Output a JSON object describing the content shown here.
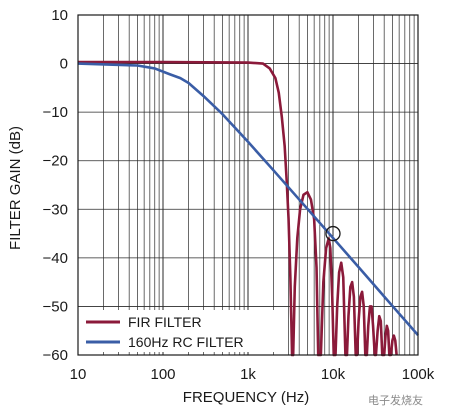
{
  "chart_data": {
    "type": "line",
    "xlabel": "FREQUENCY (Hz)",
    "ylabel": "FILTER GAIN (dB)",
    "x_scale": "log",
    "xlim": [
      10,
      100000
    ],
    "ylim": [
      -60,
      10
    ],
    "x_ticks": [
      {
        "value": 10,
        "label": "10"
      },
      {
        "value": 100,
        "label": "100"
      },
      {
        "value": 1000,
        "label": "1k"
      },
      {
        "value": 10000,
        "label": "10k"
      },
      {
        "value": 100000,
        "label": "100k"
      }
    ],
    "y_ticks": [
      10,
      0,
      -10,
      -20,
      -30,
      -40,
      -50,
      -60
    ],
    "grid": true,
    "legend_position": "bottom-left",
    "annotation": {
      "type": "circle",
      "x": 10000,
      "y": -35
    },
    "series": [
      {
        "name": "FIR FILTER",
        "color": "#8b1a3a",
        "points": [
          [
            10,
            0.3
          ],
          [
            100,
            0.3
          ],
          [
            1000,
            0.2
          ],
          [
            1500,
            0
          ],
          [
            1800,
            -1
          ],
          [
            2100,
            -3
          ],
          [
            2300,
            -6
          ],
          [
            2500,
            -11
          ],
          [
            2700,
            -17
          ],
          [
            2850,
            -24
          ],
          [
            3000,
            -32
          ],
          [
            3150,
            -44
          ],
          [
            3300,
            -60
          ],
          [
            3400,
            -60
          ],
          [
            3550,
            -46
          ],
          [
            3800,
            -36
          ],
          [
            4100,
            -30
          ],
          [
            4500,
            -27
          ],
          [
            5000,
            -26.5
          ],
          [
            5500,
            -28
          ],
          [
            6000,
            -32
          ],
          [
            6400,
            -42
          ],
          [
            6700,
            -60
          ],
          [
            7200,
            -60
          ],
          [
            7700,
            -45
          ],
          [
            8300,
            -38
          ],
          [
            8900,
            -36
          ],
          [
            9300,
            -38
          ],
          [
            9800,
            -48
          ],
          [
            10200,
            -60
          ],
          [
            10700,
            -60
          ],
          [
            11200,
            -50
          ],
          [
            11800,
            -43
          ],
          [
            12500,
            -41
          ],
          [
            13200,
            -44
          ],
          [
            14000,
            -60
          ],
          [
            14600,
            -60
          ],
          [
            15200,
            -52
          ],
          [
            16000,
            -46
          ],
          [
            16800,
            -45
          ],
          [
            17600,
            -48
          ],
          [
            18500,
            -60
          ],
          [
            19200,
            -60
          ],
          [
            20000,
            -53
          ],
          [
            21000,
            -48
          ],
          [
            22000,
            -47
          ],
          [
            23000,
            -50
          ],
          [
            24000,
            -60
          ],
          [
            25000,
            -60
          ],
          [
            26000,
            -54
          ],
          [
            27200,
            -50
          ],
          [
            28400,
            -50
          ],
          [
            29600,
            -54
          ],
          [
            31000,
            -60
          ],
          [
            32000,
            -60
          ],
          [
            33500,
            -55
          ],
          [
            35000,
            -52
          ],
          [
            36500,
            -53
          ],
          [
            38000,
            -60
          ],
          [
            40000,
            -60
          ],
          [
            41500,
            -56
          ],
          [
            43000,
            -54
          ],
          [
            44500,
            -55
          ],
          [
            46000,
            -60
          ],
          [
            48000,
            -60
          ],
          [
            50000,
            -57
          ],
          [
            52000,
            -56
          ],
          [
            54000,
            -57
          ],
          [
            56000,
            -60
          ]
        ]
      },
      {
        "name": "160Hz RC FILTER",
        "color": "#3a5da6",
        "points": [
          [
            10,
            0
          ],
          [
            50,
            -0.4
          ],
          [
            80,
            -1
          ],
          [
            120,
            -2.2
          ],
          [
            160,
            -3
          ],
          [
            200,
            -4
          ],
          [
            300,
            -6.7
          ],
          [
            500,
            -10.4
          ],
          [
            1000,
            -16.1
          ],
          [
            2000,
            -22
          ],
          [
            5000,
            -29.9
          ],
          [
            10000,
            -35.9
          ],
          [
            20000,
            -41.9
          ],
          [
            50000,
            -49.9
          ],
          [
            100000,
            -55.9
          ]
        ]
      }
    ]
  },
  "watermark": "电子发烧友"
}
